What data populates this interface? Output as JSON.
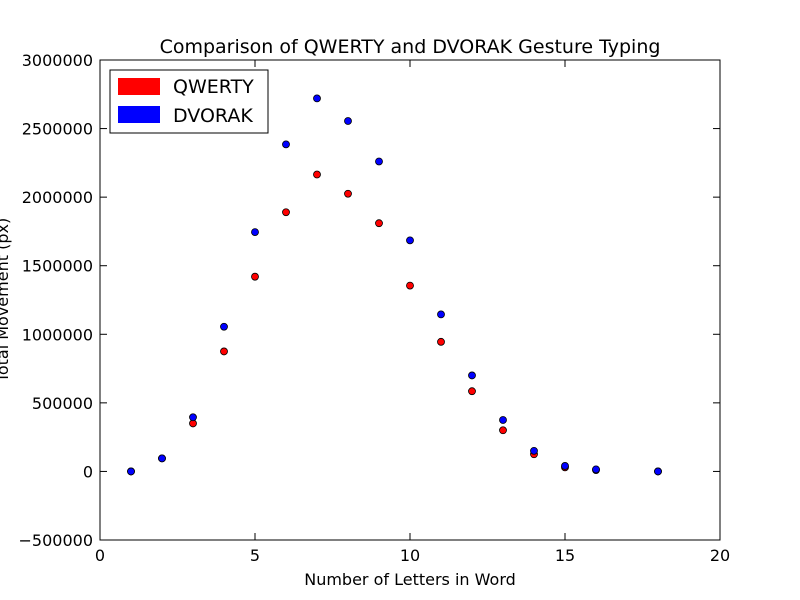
{
  "chart_data": {
    "type": "scatter",
    "title": "Comparison of QWERTY and DVORAK Gesture Typing",
    "xlabel": "Number of Letters in Word",
    "ylabel": "Total Movement (px)",
    "xlim": [
      0,
      20
    ],
    "ylim": [
      -500000,
      3000000
    ],
    "xticks": [
      0,
      5,
      10,
      15,
      20
    ],
    "yticks": [
      -500000,
      0,
      500000,
      1000000,
      1500000,
      2000000,
      2500000,
      3000000
    ],
    "grid": false,
    "legend_position": "top-left",
    "series": [
      {
        "name": "QWERTY",
        "color": "#ff0000",
        "x": [
          1,
          2,
          3,
          4,
          5,
          6,
          7,
          8,
          9,
          10,
          11,
          12,
          13,
          14,
          15,
          16,
          18
        ],
        "y": [
          0,
          95000,
          350000,
          875000,
          1420000,
          1890000,
          2165000,
          2025000,
          1810000,
          1355000,
          945000,
          585000,
          300000,
          125000,
          30000,
          10000,
          0
        ]
      },
      {
        "name": "DVORAK",
        "color": "#0000ff",
        "x": [
          1,
          2,
          3,
          4,
          5,
          6,
          7,
          8,
          9,
          10,
          11,
          12,
          13,
          14,
          15,
          16,
          18
        ],
        "y": [
          0,
          95000,
          395000,
          1055000,
          1745000,
          2385000,
          2720000,
          2555000,
          2260000,
          1685000,
          1145000,
          700000,
          375000,
          150000,
          40000,
          15000,
          0
        ]
      }
    ]
  }
}
